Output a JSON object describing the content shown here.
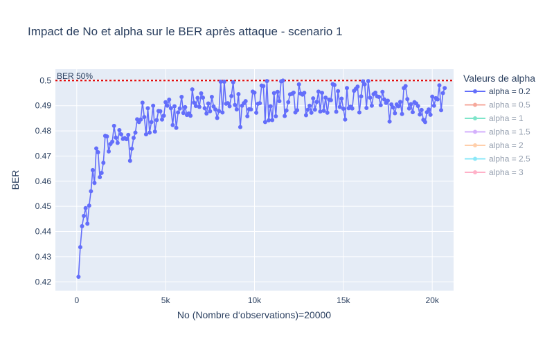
{
  "chart_data": {
    "type": "line",
    "title": "Impact de No et alpha sur le BER après attaque - scenario 1",
    "xlabel": "No (Nombre d‘observations)=20000",
    "ylabel": "BER",
    "xlim": [
      -1200,
      21200
    ],
    "ylim": [
      0.4165,
      0.5045
    ],
    "x_ticks": [
      0,
      5000,
      10000,
      15000,
      20000
    ],
    "x_tick_labels": [
      "0",
      "5k",
      "10k",
      "15k",
      "20k"
    ],
    "y_ticks": [
      0.42,
      0.43,
      0.44,
      0.45,
      0.46,
      0.47,
      0.48,
      0.49,
      0.5
    ],
    "y_tick_labels": [
      "0.42",
      "0.43",
      "0.44",
      "0.45",
      "0.46",
      "0.47",
      "0.48",
      "0.49",
      "0.5"
    ],
    "grid": true,
    "legend": {
      "title": "Valeurs de alpha",
      "placement": "right"
    },
    "reference_line": {
      "y": 0.5,
      "label": "BER 50%",
      "color": "#e00000"
    },
    "series": [
      {
        "name": "alpha = 0.2",
        "color": "#636efa",
        "visible": true,
        "x_start": 100,
        "x_step": 100,
        "values": [
          0.422,
          0.4338,
          0.4421,
          0.4462,
          0.4493,
          0.4431,
          0.4503,
          0.456,
          0.4644,
          0.4593,
          0.473,
          0.4715,
          0.4616,
          0.4633,
          0.4673,
          0.478,
          0.4778,
          0.4718,
          0.4748,
          0.4757,
          0.482,
          0.4773,
          0.4752,
          0.4803,
          0.4786,
          0.4768,
          0.4771,
          0.4767,
          0.4784,
          0.4681,
          0.4729,
          0.4772,
          0.4793,
          0.4846,
          0.4835,
          0.4845,
          0.4912,
          0.4855,
          0.4786,
          0.489,
          0.4793,
          0.4835,
          0.49,
          0.4797,
          0.4843,
          0.4879,
          0.4878,
          0.4845,
          0.486,
          0.4914,
          0.49,
          0.4924,
          0.489,
          0.4823,
          0.4898,
          0.4812,
          0.4873,
          0.4889,
          0.4935,
          0.4871,
          0.4894,
          0.4863,
          0.4869,
          0.486,
          0.4965,
          0.4912,
          0.4899,
          0.4931,
          0.4895,
          0.4949,
          0.4932,
          0.489,
          0.4869,
          0.4909,
          0.4878,
          0.4935,
          0.4897,
          0.4885,
          0.4851,
          0.4879,
          0.4995,
          0.4873,
          0.4995,
          0.4908,
          0.491,
          0.4898,
          0.4938,
          0.4993,
          0.4903,
          0.4885,
          0.4946,
          0.4815,
          0.49,
          0.491,
          0.4918,
          0.4858,
          0.4886,
          0.4885,
          0.4956,
          0.4952,
          0.4872,
          0.4908,
          0.491,
          0.498,
          0.4978,
          0.4835,
          0.4998,
          0.4842,
          0.4898,
          0.4843,
          0.495,
          0.4858,
          0.4955,
          0.4918,
          0.4997,
          0.5,
          0.4859,
          0.4881,
          0.4914,
          0.4945,
          0.4947,
          0.4952,
          0.4873,
          0.4882,
          0.4985,
          0.4948,
          0.4944,
          0.4951,
          0.4862,
          0.4884,
          0.49,
          0.4872,
          0.4929,
          0.4884,
          0.4915,
          0.4956,
          0.4877,
          0.4951,
          0.488,
          0.4932,
          0.4872,
          0.4924,
          0.4922,
          0.4986,
          0.4982,
          0.4876,
          0.4958,
          0.4895,
          0.4928,
          0.4888,
          0.4845,
          0.497,
          0.489,
          0.4896,
          0.4889,
          0.4959,
          0.4967,
          0.4976,
          0.4873,
          0.4937,
          0.4997,
          0.4985,
          0.4891,
          0.4998,
          0.4932,
          0.49,
          0.4946,
          0.4952,
          0.4937,
          0.4935,
          0.4902,
          0.4955,
          0.4925,
          0.4911,
          0.492,
          0.4837,
          0.4905,
          0.4893,
          0.487,
          0.4905,
          0.4898,
          0.4915,
          0.4867,
          0.497,
          0.4978,
          0.4926,
          0.4889,
          0.4906,
          0.4874,
          0.4914,
          0.4909,
          0.4899,
          0.4865,
          0.4883,
          0.4844,
          0.4835,
          0.4874,
          0.4885,
          0.4864,
          0.4936,
          0.49,
          0.493,
          0.4925,
          0.4981,
          0.4882,
          0.495,
          0.497
        ]
      },
      {
        "name": "alpha = 0.5",
        "color": "#ef553b",
        "visible": false
      },
      {
        "name": "alpha = 1",
        "color": "#00cc96",
        "visible": false
      },
      {
        "name": "alpha = 1.5",
        "color": "#ab63fa",
        "visible": false
      },
      {
        "name": "alpha = 2",
        "color": "#ffa15a",
        "visible": false
      },
      {
        "name": "alpha = 2.5",
        "color": "#19d3f3",
        "visible": false
      },
      {
        "name": "alpha = 3",
        "color": "#ff6692",
        "visible": false
      }
    ]
  }
}
